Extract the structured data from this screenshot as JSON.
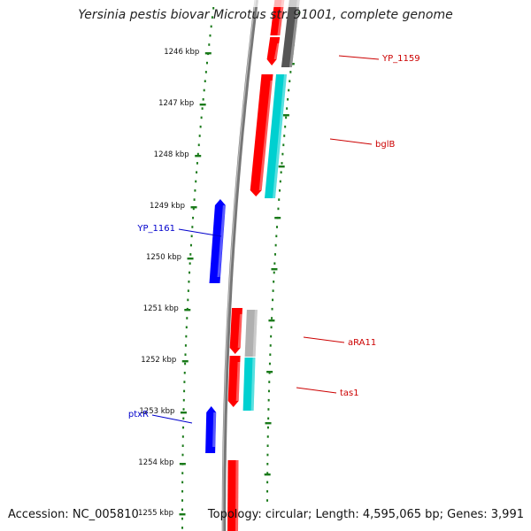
{
  "title": "Yersinia pestis biovar Microtus str. 91001, complete genome",
  "accession": "Accession: NC_005810",
  "summary": "Topology: circular; Length: 4,595,065 bp; Genes: 3,991",
  "colors": {
    "backbone": "#777777",
    "tick": "#1a7a1a",
    "forward_gene": "#ff0000",
    "reverse_gene": "#0000ff",
    "cds_cyan": "#00d0d0",
    "cds_gray": "#b0b0b0",
    "cds_dark": "#555555",
    "forward_label": "#cc0000",
    "reverse_label": "#0000cc"
  },
  "tick_labels": [
    "1246 kbp",
    "1247 kbp",
    "1248 kbp",
    "1249 kbp",
    "1250 kbp",
    "1251 kbp",
    "1252 kbp",
    "1253 kbp",
    "1254 kbp",
    "1255 kbp"
  ],
  "gene_labels": [
    {
      "name": "YP_1159",
      "strand": "forward"
    },
    {
      "name": "bglB",
      "strand": "forward"
    },
    {
      "name": "YP_1161",
      "strand": "reverse"
    },
    {
      "name": "aRA11",
      "strand": "forward"
    },
    {
      "name": "tas1",
      "strand": "forward"
    },
    {
      "name": "ptxR",
      "strand": "reverse"
    }
  ]
}
